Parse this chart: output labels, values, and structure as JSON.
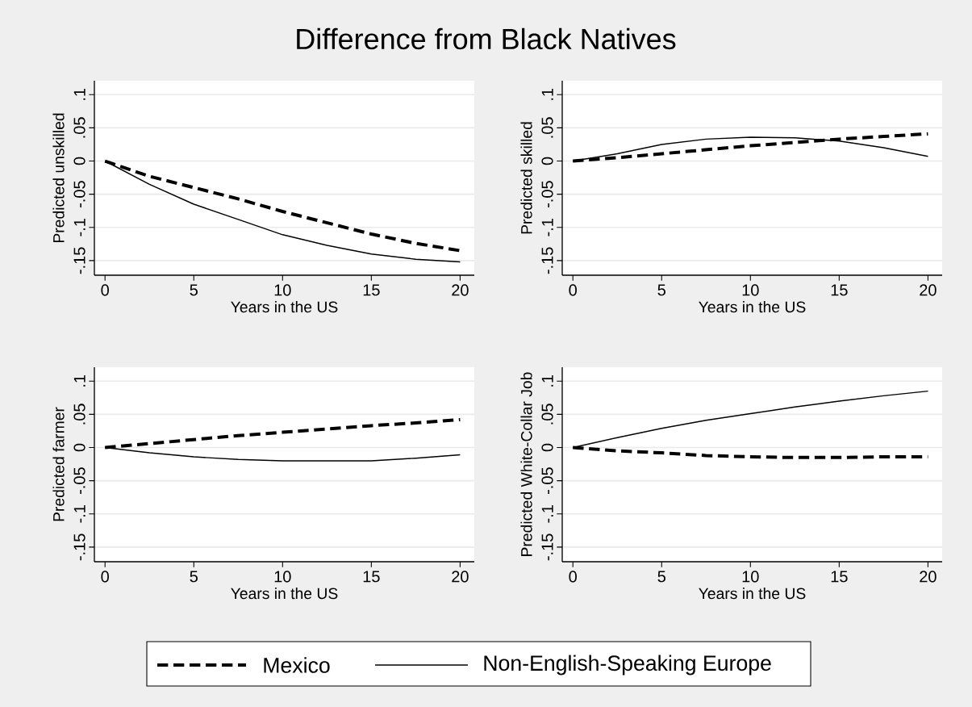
{
  "chart_data": [
    {
      "type": "line",
      "title": "Difference from Black Natives",
      "xlabel": "Years in the US",
      "ylabel": "Predicted unskilled",
      "x": [
        0,
        2.5,
        5,
        7.5,
        10,
        12.5,
        15,
        17.5,
        20
      ],
      "xlim": [
        -0.6,
        20.8
      ],
      "ylim": [
        -0.172,
        0.121
      ],
      "xticks": [
        0,
        5,
        10,
        15,
        20
      ],
      "yticks": [
        {
          "value": -0.15,
          "label": "-.15"
        },
        {
          "value": -0.1,
          "label": "-.1"
        },
        {
          "value": -0.05,
          "label": "-.05"
        },
        0,
        {
          "value": 0.05,
          "label": ".05"
        },
        {
          "value": 0.1,
          "label": ".1"
        }
      ],
      "grid": "y",
      "legend": "bottom",
      "series": [
        {
          "name": "Mexico",
          "color": "#000000",
          "line_style": "dashed",
          "values": [
            0,
            -0.023,
            -0.04,
            -0.057,
            -0.076,
            -0.093,
            -0.11,
            -0.124,
            -0.135
          ]
        },
        {
          "name": "Non-English-Speaking Europe",
          "color": "#000000",
          "line_style": "solid",
          "values": [
            0,
            -0.035,
            -0.065,
            -0.088,
            -0.111,
            -0.127,
            -0.14,
            -0.148,
            -0.152
          ]
        }
      ]
    },
    {
      "type": "line",
      "xlabel": "Years in the US",
      "ylabel": "Predicted skilled",
      "x": [
        0,
        2.5,
        5,
        7.5,
        10,
        12.5,
        15,
        17.5,
        20
      ],
      "xlim": [
        -0.6,
        20.8
      ],
      "ylim": [
        -0.172,
        0.121
      ],
      "xticks": [
        0,
        5,
        10,
        15,
        20
      ],
      "yticks": [
        {
          "value": -0.15,
          "label": "-.15"
        },
        {
          "value": -0.1,
          "label": "-.1"
        },
        {
          "value": -0.05,
          "label": "-.05"
        },
        0,
        {
          "value": 0.05,
          "label": ".05"
        },
        {
          "value": 0.1,
          "label": ".1"
        }
      ],
      "grid": "y",
      "series": [
        {
          "color": "#000000",
          "line_style": "dashed",
          "values": [
            0,
            0.005,
            0.011,
            0.017,
            0.023,
            0.028,
            0.033,
            0.037,
            0.041
          ]
        },
        {
          "color": "#000000",
          "line_style": "solid",
          "values": [
            0,
            0.011,
            0.025,
            0.033,
            0.036,
            0.035,
            0.03,
            0.02,
            0.007
          ]
        }
      ]
    },
    {
      "type": "line",
      "xlabel": "Years in the US",
      "ylabel": "Predicted farmer",
      "x": [
        0,
        2.5,
        5,
        7.5,
        10,
        12.5,
        15,
        17.5,
        20
      ],
      "xlim": [
        -0.6,
        20.8
      ],
      "ylim": [
        -0.172,
        0.121
      ],
      "xticks": [
        0,
        5,
        10,
        15,
        20
      ],
      "yticks": [
        {
          "value": -0.15,
          "label": "-.15"
        },
        {
          "value": -0.1,
          "label": "-.1"
        },
        {
          "value": -0.05,
          "label": "-.05"
        },
        0,
        {
          "value": 0.05,
          "label": ".05"
        },
        {
          "value": 0.1,
          "label": ".1"
        }
      ],
      "grid": "y",
      "series": [
        {
          "color": "#000000",
          "line_style": "dashed",
          "values": [
            0,
            0.006,
            0.012,
            0.018,
            0.023,
            0.028,
            0.033,
            0.037,
            0.042
          ]
        },
        {
          "color": "#000000",
          "line_style": "solid",
          "values": [
            0,
            -0.008,
            -0.014,
            -0.018,
            -0.02,
            -0.02,
            -0.02,
            -0.016,
            -0.011
          ]
        }
      ]
    },
    {
      "type": "line",
      "xlabel": "Years in the US",
      "ylabel": "Predicted White-Collar Job",
      "x": [
        0,
        2.5,
        5,
        7.5,
        10,
        12.5,
        15,
        17.5,
        20
      ],
      "xlim": [
        -0.6,
        20.8
      ],
      "ylim": [
        -0.172,
        0.121
      ],
      "xticks": [
        0,
        5,
        10,
        15,
        20
      ],
      "yticks": [
        {
          "value": -0.15,
          "label": "-.15"
        },
        {
          "value": -0.1,
          "label": "-.1"
        },
        {
          "value": -0.05,
          "label": "-.05"
        },
        0,
        {
          "value": 0.05,
          "label": ".05"
        },
        {
          "value": 0.1,
          "label": ".1"
        }
      ],
      "grid": "y",
      "series": [
        {
          "color": "#000000",
          "line_style": "dashed",
          "values": [
            0,
            -0.005,
            -0.008,
            -0.012,
            -0.014,
            -0.015,
            -0.015,
            -0.014,
            -0.014
          ]
        },
        {
          "color": "#000000",
          "line_style": "solid",
          "values": [
            0,
            0.015,
            0.029,
            0.041,
            0.051,
            0.061,
            0.07,
            0.078,
            0.085
          ]
        }
      ]
    }
  ]
}
